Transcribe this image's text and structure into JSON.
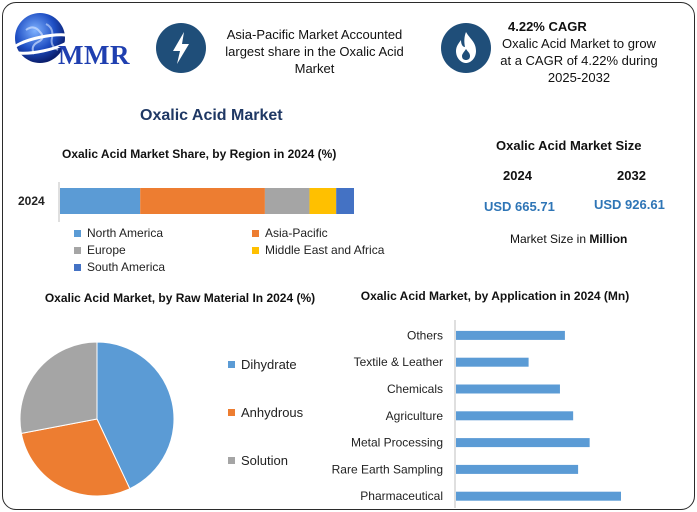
{
  "logo": {
    "text": "MMR"
  },
  "callouts": [
    {
      "icon": "lightning-icon",
      "lines": [
        "Asia-Pacific Market Accounted",
        "largest share in the Oxalic Acid",
        "Market"
      ]
    },
    {
      "icon": "flame-icon",
      "headline": "4.22% CAGR",
      "lines": [
        "Oxalic Acid Market to grow",
        "at a CAGR of 4.22% during",
        "2025-2032"
      ]
    }
  ],
  "main_title": "Oxalic Acid Market",
  "market_size": {
    "title": "Oxalic Acid Market Size",
    "year1": "2024",
    "value1": "USD 665.71",
    "year2": "2032",
    "value2": "USD 926.61",
    "note_prefix": "Market Size in ",
    "note_bold": "Million"
  },
  "colors": {
    "blue": "#5b9bd5",
    "orange": "#ed7d31",
    "gray": "#a5a5a5",
    "yellow": "#ffc000",
    "darkblue": "#4472c4",
    "accent_text": "#2e75b6",
    "icon_circle": "#1f4e79"
  },
  "chart_data": [
    {
      "type": "bar",
      "orientation": "horizontal-stacked",
      "title": "Oxalic Acid Market Share, by Region in 2024 (%)",
      "categories": [
        "2024"
      ],
      "series": [
        {
          "name": "North America",
          "values": [
            27
          ],
          "color": "#5b9bd5"
        },
        {
          "name": "Asia-Pacific",
          "values": [
            42
          ],
          "color": "#ed7d31"
        },
        {
          "name": "Europe",
          "values": [
            15
          ],
          "color": "#a5a5a5"
        },
        {
          "name": "Middle East and Africa",
          "values": [
            9
          ],
          "color": "#ffc000"
        },
        {
          "name": "South America",
          "values": [
            6
          ],
          "color": "#4472c4"
        }
      ],
      "legend": "bottom"
    },
    {
      "type": "pie",
      "title": "Oxalic Acid Market, by Raw Material In 2024 (%)",
      "categories": [
        "Dihydrate",
        "Anhydrous",
        "Solution"
      ],
      "values": [
        43,
        29,
        28
      ],
      "colors": [
        "#5b9bd5",
        "#ed7d31",
        "#a5a5a5"
      ],
      "legend": "right"
    },
    {
      "type": "bar",
      "orientation": "horizontal",
      "title": "Oxalic Acid Market, by Application in 2024 (Mn)",
      "categories": [
        "Others",
        "Textile & Leather",
        "Chemicals",
        "Agriculture",
        "Metal Processing",
        "Rare Earth Sampling",
        "Pharmaceutical"
      ],
      "values": [
        66,
        44,
        63,
        71,
        81,
        74,
        100
      ],
      "color": "#5b9bd5"
    }
  ]
}
